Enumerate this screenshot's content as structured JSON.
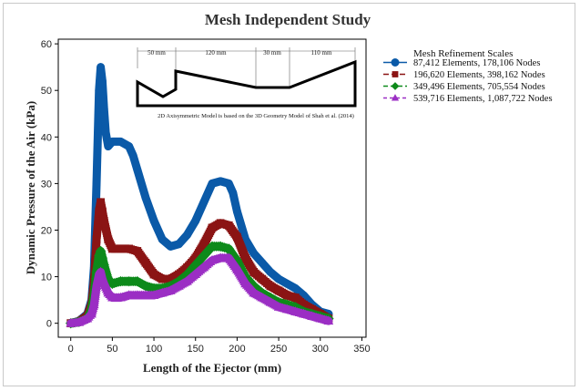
{
  "chart_data": {
    "type": "line",
    "title": "Mesh Independent Study",
    "xlabel": "Length of the Ejector (mm)",
    "ylabel": "Dynamic Pressure of the Air (kPa)",
    "xlim": [
      -15,
      355
    ],
    "ylim": [
      -3,
      61
    ],
    "x_ticks": [
      0,
      50,
      100,
      150,
      200,
      250,
      300,
      350
    ],
    "y_ticks": [
      0,
      10,
      20,
      30,
      40,
      50,
      60
    ],
    "grid": false,
    "legend_title": "Mesh Refinement Scales",
    "legend_position": "right",
    "series": [
      {
        "name": "87,412 Elements, 178,106 Nodes",
        "color": "#0b5aa8",
        "marker": "circle",
        "x": [
          0,
          10,
          20,
          25,
          28,
          31,
          34,
          36,
          38,
          40,
          42,
          45,
          50,
          60,
          70,
          75,
          80,
          90,
          100,
          110,
          120,
          130,
          140,
          150,
          160,
          170,
          180,
          190,
          195,
          200,
          210,
          220,
          230,
          240,
          250,
          260,
          270,
          280,
          290,
          300,
          310
        ],
        "y": [
          0,
          0.5,
          2,
          5,
          12,
          30,
          50,
          55,
          52,
          46,
          41,
          38,
          39,
          39,
          38,
          36,
          33,
          27,
          22,
          18,
          16.5,
          17,
          19,
          22,
          26,
          30,
          30.5,
          30,
          28,
          24,
          18,
          15,
          13,
          11,
          9.5,
          8.5,
          7.5,
          6,
          4,
          2.5,
          2
        ]
      },
      {
        "name": "196,620 Elements, 398,162 Nodes",
        "color": "#8b1414",
        "marker": "square",
        "x": [
          0,
          10,
          20,
          25,
          28,
          31,
          34,
          36,
          38,
          40,
          45,
          50,
          60,
          70,
          80,
          90,
          100,
          110,
          120,
          130,
          140,
          150,
          160,
          170,
          180,
          190,
          200,
          210,
          220,
          230,
          240,
          250,
          260,
          270,
          280,
          290,
          300,
          310
        ],
        "y": [
          0,
          0.3,
          1.5,
          4,
          9,
          18,
          24,
          26,
          24,
          22,
          18,
          16,
          16,
          16,
          15.5,
          13,
          10.5,
          9.5,
          9.5,
          10.5,
          12,
          14,
          17,
          20.5,
          21.5,
          21,
          18.5,
          14,
          11,
          9.5,
          8,
          7,
          6,
          5.5,
          4,
          3,
          2,
          1
        ]
      },
      {
        "name": "349,496 Elements, 705,554 Nodes",
        "color": "#0d8a1a",
        "marker": "diamond",
        "x": [
          0,
          10,
          20,
          25,
          28,
          31,
          34,
          36,
          38,
          40,
          45,
          50,
          60,
          70,
          80,
          90,
          100,
          110,
          120,
          130,
          140,
          150,
          160,
          170,
          180,
          190,
          200,
          210,
          220,
          230,
          240,
          250,
          260,
          270,
          280,
          290,
          300,
          310
        ],
        "y": [
          0,
          0.3,
          1,
          3,
          6,
          11,
          14.5,
          15.5,
          14,
          12.5,
          9.5,
          8.5,
          9,
          9,
          9,
          8,
          7.5,
          7.5,
          8,
          9,
          10.5,
          12.5,
          14.5,
          16.5,
          16.5,
          16,
          13.5,
          10,
          8,
          6.5,
          5.5,
          4.5,
          4,
          3.5,
          2.5,
          2,
          1.5,
          1
        ]
      },
      {
        "name": "539,716 Elements, 1,087,722 Nodes",
        "color": "#9b2ec4",
        "marker": "triangle",
        "x": [
          0,
          10,
          20,
          25,
          28,
          31,
          34,
          36,
          38,
          40,
          45,
          50,
          60,
          70,
          80,
          90,
          100,
          110,
          120,
          130,
          140,
          150,
          160,
          170,
          180,
          190,
          200,
          210,
          220,
          230,
          240,
          250,
          260,
          270,
          280,
          290,
          300,
          310
        ],
        "y": [
          0,
          0.2,
          1,
          2,
          4,
          8,
          10.5,
          11,
          9.5,
          8.5,
          6.5,
          5.5,
          5.5,
          6,
          6,
          6,
          6,
          6.5,
          7,
          8,
          9,
          10.5,
          12,
          13.5,
          14,
          14,
          11.5,
          8.5,
          6.5,
          5.5,
          4.5,
          3.5,
          3,
          2.5,
          2,
          1.5,
          1,
          0.5
        ]
      }
    ],
    "inset": {
      "dimensions": [
        "50 mm",
        "120 mm",
        "30 mm",
        "110 mm"
      ],
      "note": "2D Axisymmetric Model is based on the 3D Geometry Model of Shah et al. (2014)"
    }
  }
}
